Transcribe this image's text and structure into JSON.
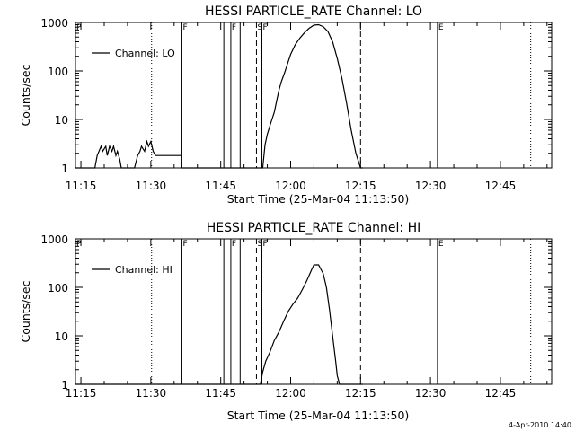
{
  "chart_data": [
    {
      "type": "line",
      "title": "HESSI PARTICLE_RATE Channel: LO",
      "xlabel": "Start Time (25-Mar-04 11:13:50)",
      "ylabel": "Counts/sec",
      "yscale": "log",
      "ylim": [
        1,
        1000
      ],
      "xlim": [
        "11:13:50",
        "12:56:00"
      ],
      "xticks": [
        "11:15",
        "11:30",
        "11:45",
        "12:00",
        "12:15",
        "12:30",
        "12:45"
      ],
      "yticks": [
        "1",
        "10",
        "100",
        "1000"
      ],
      "legend": "top-left",
      "series": [
        {
          "name": "Channel: LO",
          "color": "#000000",
          "x": [
            "11:13:50",
            "11:18:00",
            "11:18:30",
            "11:19:20",
            "11:19:40",
            "11:20:20",
            "11:20:40",
            "11:21:10",
            "11:21:40",
            "11:22:00",
            "11:22:30",
            "11:22:50",
            "11:23:20",
            "11:23:40",
            "11:24:10",
            "11:25:00",
            "11:25:20",
            "11:26:30",
            "11:27:10",
            "11:27:40",
            "11:28:00",
            "11:28:40",
            "11:29:10",
            "11:29:30",
            "11:30:00",
            "11:30:30",
            "11:31:00",
            "11:32:00",
            "11:36:30",
            "11:36:40",
            "11:54:00",
            "11:54:30",
            "11:55:00",
            "11:55:40",
            "11:56:00",
            "11:56:30",
            "11:57:00",
            "11:57:30",
            "11:58:00",
            "11:58:40",
            "11:59:20",
            "12:00:00",
            "12:01:00",
            "12:02:00",
            "12:03:00",
            "12:04:00",
            "12:05:00",
            "12:06:00",
            "12:07:00",
            "12:08:00",
            "12:09:00",
            "12:10:00",
            "12:11:00",
            "12:12:00",
            "12:13:00",
            "12:14:00",
            "12:15:00",
            "12:15:30"
          ],
          "y": [
            1,
            1,
            1.8,
            2.8,
            2.2,
            2.8,
            1.8,
            2.8,
            2.2,
            2.8,
            1.8,
            2.2,
            1.5,
            1,
            1,
            1,
            1,
            1,
            1.8,
            2.2,
            2.8,
            2.2,
            3.5,
            2.8,
            3.5,
            2.2,
            1.8,
            1.8,
            1.8,
            1,
            1,
            3,
            5,
            8,
            10,
            14,
            24,
            40,
            60,
            90,
            140,
            220,
            350,
            480,
            620,
            760,
            880,
            900,
            820,
            650,
            400,
            180,
            70,
            22,
            6,
            2,
            1,
            1
          ]
        }
      ],
      "vlines": [
        {
          "time": "11:30:10",
          "style": "dotted"
        },
        {
          "time": "11:36:40",
          "style": "solid",
          "label": "F"
        },
        {
          "time": "11:45:40",
          "style": "solid"
        },
        {
          "time": "11:47:10",
          "style": "solid",
          "label": "F"
        },
        {
          "time": "11:49:10",
          "style": "solid"
        },
        {
          "time": "11:52:40",
          "style": "dashed",
          "label": "S"
        },
        {
          "time": "11:53:50",
          "style": "solid",
          "label": "F"
        },
        {
          "time": "12:15:00",
          "style": "dashed"
        },
        {
          "time": "12:31:30",
          "style": "solid",
          "label": "E"
        },
        {
          "time": "12:51:30",
          "style": "dotted"
        }
      ],
      "edge_labels": [
        "P"
      ]
    },
    {
      "type": "line",
      "title": "HESSI PARTICLE_RATE Channel: HI",
      "xlabel": "Start Time (25-Mar-04 11:13:50)",
      "ylabel": "Counts/sec",
      "yscale": "log",
      "ylim": [
        1,
        1000
      ],
      "xlim": [
        "11:13:50",
        "12:56:00"
      ],
      "xticks": [
        "11:15",
        "11:30",
        "11:45",
        "12:00",
        "12:15",
        "12:30",
        "12:45"
      ],
      "yticks": [
        "1",
        "10",
        "100",
        "1000"
      ],
      "legend": "top-left",
      "series": [
        {
          "name": "Channel: HI",
          "color": "#000000",
          "x": [
            "11:13:50",
            "11:53:30",
            "11:54:00",
            "11:54:40",
            "11:55:30",
            "11:56:30",
            "11:57:30",
            "11:58:30",
            "11:59:30",
            "12:00:30",
            "12:01:30",
            "12:02:30",
            "12:03:30",
            "12:04:30",
            "12:05:00",
            "12:06:00",
            "12:07:00",
            "12:07:40",
            "12:08:20",
            "12:09:00",
            "12:09:40",
            "12:10:00",
            "12:10:30",
            "12:15:30"
          ],
          "y": [
            1,
            1,
            1.8,
            3,
            4.5,
            8,
            12,
            20,
            32,
            45,
            60,
            90,
            140,
            230,
            290,
            290,
            190,
            100,
            35,
            10,
            3,
            1.5,
            1,
            1
          ]
        }
      ],
      "vlines": [
        {
          "time": "11:30:10",
          "style": "dotted"
        },
        {
          "time": "11:36:40",
          "style": "solid",
          "label": "F"
        },
        {
          "time": "11:45:40",
          "style": "solid"
        },
        {
          "time": "11:47:10",
          "style": "solid",
          "label": "F"
        },
        {
          "time": "11:49:10",
          "style": "solid"
        },
        {
          "time": "11:52:40",
          "style": "dashed",
          "label": "S"
        },
        {
          "time": "11:53:50",
          "style": "solid",
          "label": "F"
        },
        {
          "time": "12:15:00",
          "style": "dashed"
        },
        {
          "time": "12:31:30",
          "style": "solid",
          "label": "E"
        },
        {
          "time": "12:51:30",
          "style": "dotted"
        }
      ],
      "edge_labels": [
        "P"
      ]
    }
  ],
  "footer": {
    "timestamp": "4-Apr-2010 14:40"
  }
}
